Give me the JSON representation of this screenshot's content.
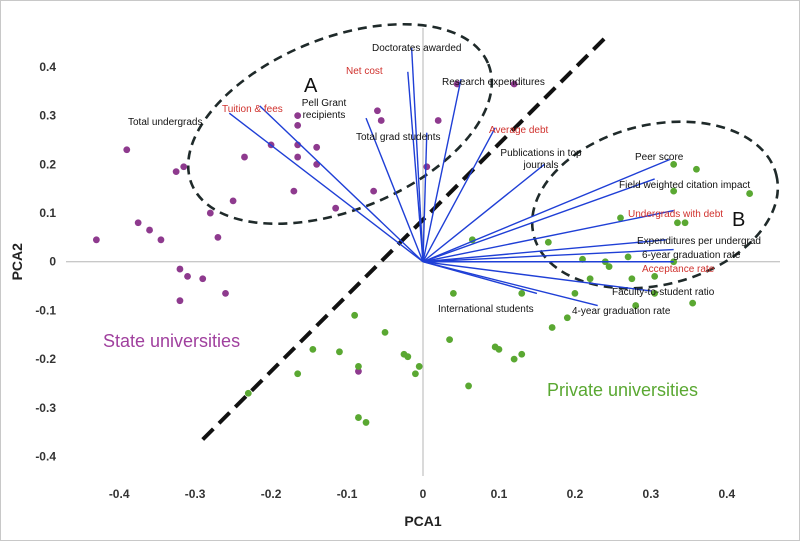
{
  "chart_data": {
    "type": "scatter",
    "title": "",
    "xlabel": "PCA1",
    "ylabel": "PCA2",
    "xlim": [
      -0.47,
      0.47
    ],
    "ylim": [
      -0.44,
      0.48
    ],
    "x_ticks": [
      -0.4,
      -0.3,
      -0.2,
      -0.1,
      0,
      0.1,
      0.2,
      0.3,
      0.4
    ],
    "x_tick_labels": [
      "-0.4",
      "-0.3",
      "-0.2",
      "-0.1",
      "0",
      "0.1",
      "0.2",
      "0.3",
      "0.4"
    ],
    "y_ticks": [
      0.4,
      0.3,
      0.2,
      0.1,
      0,
      -0.1,
      -0.2,
      -0.3,
      -0.4
    ],
    "y_tick_labels": [
      "0.4",
      "0.3",
      "0.2",
      "0.1",
      "0",
      "-0.1",
      "-0.2",
      "-0.3",
      "-0.4"
    ],
    "series": [
      {
        "name": "State universities",
        "color": "#8e3a8e",
        "points": [
          [
            -0.43,
            0.045
          ],
          [
            -0.39,
            0.23
          ],
          [
            -0.375,
            0.08
          ],
          [
            -0.36,
            0.065
          ],
          [
            -0.345,
            0.045
          ],
          [
            -0.325,
            0.185
          ],
          [
            -0.315,
            0.195
          ],
          [
            -0.32,
            -0.015
          ],
          [
            -0.31,
            -0.03
          ],
          [
            -0.32,
            -0.08
          ],
          [
            -0.29,
            -0.035
          ],
          [
            -0.26,
            -0.065
          ],
          [
            -0.28,
            0.1
          ],
          [
            -0.25,
            0.125
          ],
          [
            -0.27,
            0.05
          ],
          [
            -0.235,
            0.215
          ],
          [
            -0.165,
            0.3
          ],
          [
            -0.165,
            0.28
          ],
          [
            -0.165,
            0.24
          ],
          [
            -0.165,
            0.215
          ],
          [
            -0.14,
            0.235
          ],
          [
            -0.2,
            0.24
          ],
          [
            -0.14,
            0.2
          ],
          [
            -0.17,
            0.145
          ],
          [
            -0.115,
            0.11
          ],
          [
            -0.06,
            0.31
          ],
          [
            -0.055,
            0.29
          ],
          [
            -0.065,
            0.145
          ],
          [
            -0.085,
            -0.225
          ],
          [
            0.045,
            0.365
          ],
          [
            0.12,
            0.365
          ],
          [
            0.02,
            0.29
          ],
          [
            0.005,
            0.195
          ]
        ]
      },
      {
        "name": "Private universities",
        "color": "#5aa832",
        "points": [
          [
            -0.23,
            -0.27
          ],
          [
            -0.165,
            -0.23
          ],
          [
            -0.145,
            -0.18
          ],
          [
            -0.11,
            -0.185
          ],
          [
            -0.09,
            -0.11
          ],
          [
            -0.085,
            -0.215
          ],
          [
            -0.05,
            -0.145
          ],
          [
            -0.025,
            -0.19
          ],
          [
            -0.02,
            -0.195
          ],
          [
            -0.005,
            -0.215
          ],
          [
            -0.01,
            -0.23
          ],
          [
            -0.085,
            -0.32
          ],
          [
            -0.075,
            -0.33
          ],
          [
            0.04,
            -0.065
          ],
          [
            0.035,
            -0.16
          ],
          [
            0.065,
            0.045
          ],
          [
            0.095,
            -0.175
          ],
          [
            0.1,
            -0.18
          ],
          [
            0.06,
            -0.255
          ],
          [
            0.12,
            -0.2
          ],
          [
            0.13,
            -0.19
          ],
          [
            0.13,
            -0.065
          ],
          [
            0.165,
            0.04
          ],
          [
            0.17,
            -0.135
          ],
          [
            0.19,
            -0.115
          ],
          [
            0.2,
            -0.065
          ],
          [
            0.21,
            0.005
          ],
          [
            0.22,
            -0.035
          ],
          [
            0.24,
            0.0
          ],
          [
            0.245,
            -0.01
          ],
          [
            0.26,
            0.09
          ],
          [
            0.27,
            0.01
          ],
          [
            0.275,
            -0.035
          ],
          [
            0.28,
            -0.09
          ],
          [
            0.305,
            -0.03
          ],
          [
            0.305,
            -0.065
          ],
          [
            0.33,
            0.145
          ],
          [
            0.33,
            0.2
          ],
          [
            0.335,
            0.08
          ],
          [
            0.345,
            0.08
          ],
          [
            0.36,
            0.19
          ],
          [
            0.355,
            -0.085
          ],
          [
            0.43,
            0.14
          ],
          [
            0.33,
            0.0
          ]
        ]
      }
    ],
    "vectors": [
      {
        "label": "Total undergrads",
        "x": -0.255,
        "y": 0.305,
        "color": "#111111"
      },
      {
        "label": "Tuition & fees",
        "x": -0.215,
        "y": 0.32,
        "color": "#d0312d"
      },
      {
        "label": "Pell Grant recipients",
        "x": -0.075,
        "y": 0.295,
        "color": "#111111"
      },
      {
        "label": "Net cost",
        "x": -0.02,
        "y": 0.39,
        "color": "#d0312d"
      },
      {
        "label": "Doctorates awarded",
        "x": -0.015,
        "y": 0.44,
        "color": "#111111"
      },
      {
        "label": "Total grad students",
        "x": 0.005,
        "y": 0.265,
        "color": "#111111"
      },
      {
        "label": "Research expenditures",
        "x": 0.05,
        "y": 0.375,
        "color": "#111111"
      },
      {
        "label": "Average debt",
        "x": 0.095,
        "y": 0.275,
        "color": "#d0312d"
      },
      {
        "label": "Publications in top journals",
        "x": 0.16,
        "y": 0.2,
        "color": "#111111"
      },
      {
        "label": "Peer score",
        "x": 0.325,
        "y": 0.21,
        "color": "#111111"
      },
      {
        "label": "Field weighted citation impact",
        "x": 0.305,
        "y": 0.17,
        "color": "#111111"
      },
      {
        "label": "Undergrads with debt",
        "x": 0.33,
        "y": 0.105,
        "color": "#d0312d"
      },
      {
        "label": "Expenditures per undergrad",
        "x": 0.32,
        "y": 0.045,
        "color": "#111111"
      },
      {
        "label": "6-year graduation rate",
        "x": 0.33,
        "y": 0.025,
        "color": "#111111"
      },
      {
        "label": "Acceptance rate",
        "x": 0.33,
        "y": 0.0,
        "color": "#d0312d"
      },
      {
        "label": "Faculty-to-student ratio",
        "x": 0.3,
        "y": -0.06,
        "color": "#111111"
      },
      {
        "label": "4-year graduation rate",
        "x": 0.23,
        "y": -0.09,
        "color": "#111111"
      },
      {
        "label": "International students",
        "x": 0.15,
        "y": -0.065,
        "color": "#111111"
      }
    ],
    "group_labels": [
      {
        "text": "State universities",
        "color": "#a0409e"
      },
      {
        "text": "Private universities",
        "color": "#5aa832"
      }
    ],
    "cluster_labels": [
      "A",
      "B"
    ],
    "divider_line": {
      "from": [
        -0.29,
        -0.365
      ],
      "to": [
        0.24,
        0.46
      ]
    },
    "cluster_ellipses": [
      "A",
      "B"
    ]
  }
}
